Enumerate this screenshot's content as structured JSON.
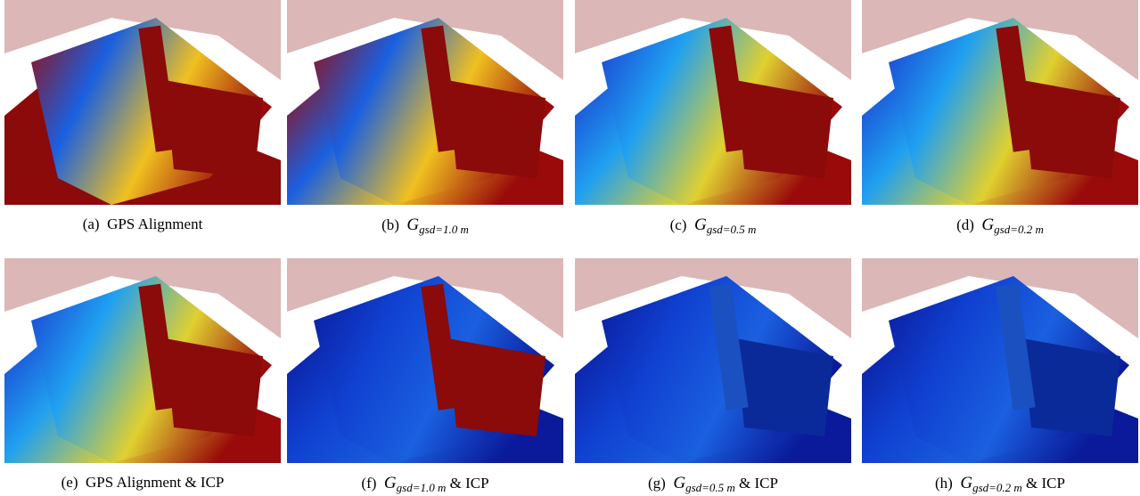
{
  "figure": {
    "panels": [
      {
        "label": "(a)",
        "text": "GPS Alignment"
      },
      {
        "label": "(b)",
        "symbol": "G",
        "subscript": "gsd=1.0 m"
      },
      {
        "label": "(c)",
        "symbol": "G",
        "subscript": "gsd=0.5 m"
      },
      {
        "label": "(d)",
        "symbol": "G",
        "subscript": "gsd=0.2 m"
      },
      {
        "label": "(e)",
        "text": "GPS Alignment & ICP"
      },
      {
        "label": "(f)",
        "symbol": "G",
        "subscript": "gsd=1.0 m",
        "suffix": "& ICP"
      },
      {
        "label": "(g)",
        "symbol": "G",
        "subscript": "gsd=0.5 m",
        "suffix": "& ICP"
      },
      {
        "label": "(h)",
        "symbol": "G",
        "subscript": "gsd=0.2 m",
        "suffix": "& ICP"
      }
    ]
  }
}
